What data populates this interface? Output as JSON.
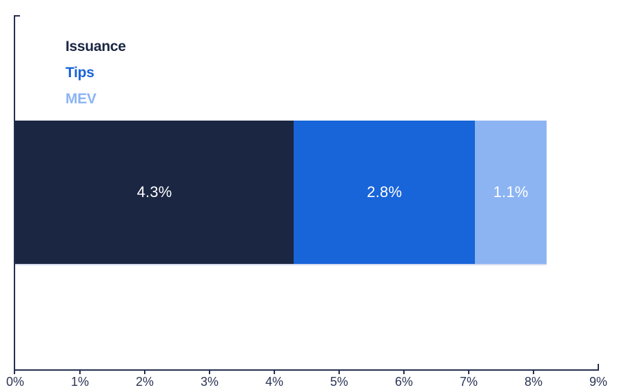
{
  "chart_data": {
    "type": "bar",
    "orientation": "horizontal",
    "stacked": true,
    "series": [
      {
        "name": "Issuance",
        "value": 4.3,
        "label": "4.3%",
        "color": "#1a2642"
      },
      {
        "name": "Tips",
        "value": 2.8,
        "label": "2.8%",
        "color": "#1864d9"
      },
      {
        "name": "MEV",
        "value": 1.1,
        "label": "1.1%",
        "color": "#8cb4f3"
      }
    ],
    "xlim": [
      0,
      9
    ],
    "x_tick_labels": [
      "0%",
      "1%",
      "2%",
      "3%",
      "4%",
      "5%",
      "6%",
      "7%",
      "8%",
      "9%"
    ],
    "legend_position": "top-left",
    "grid": "off",
    "colors": {
      "axis": "#222e4e",
      "tick_label": "#2a3454",
      "value_label": "#ffffff",
      "background": "#ffffff"
    }
  }
}
